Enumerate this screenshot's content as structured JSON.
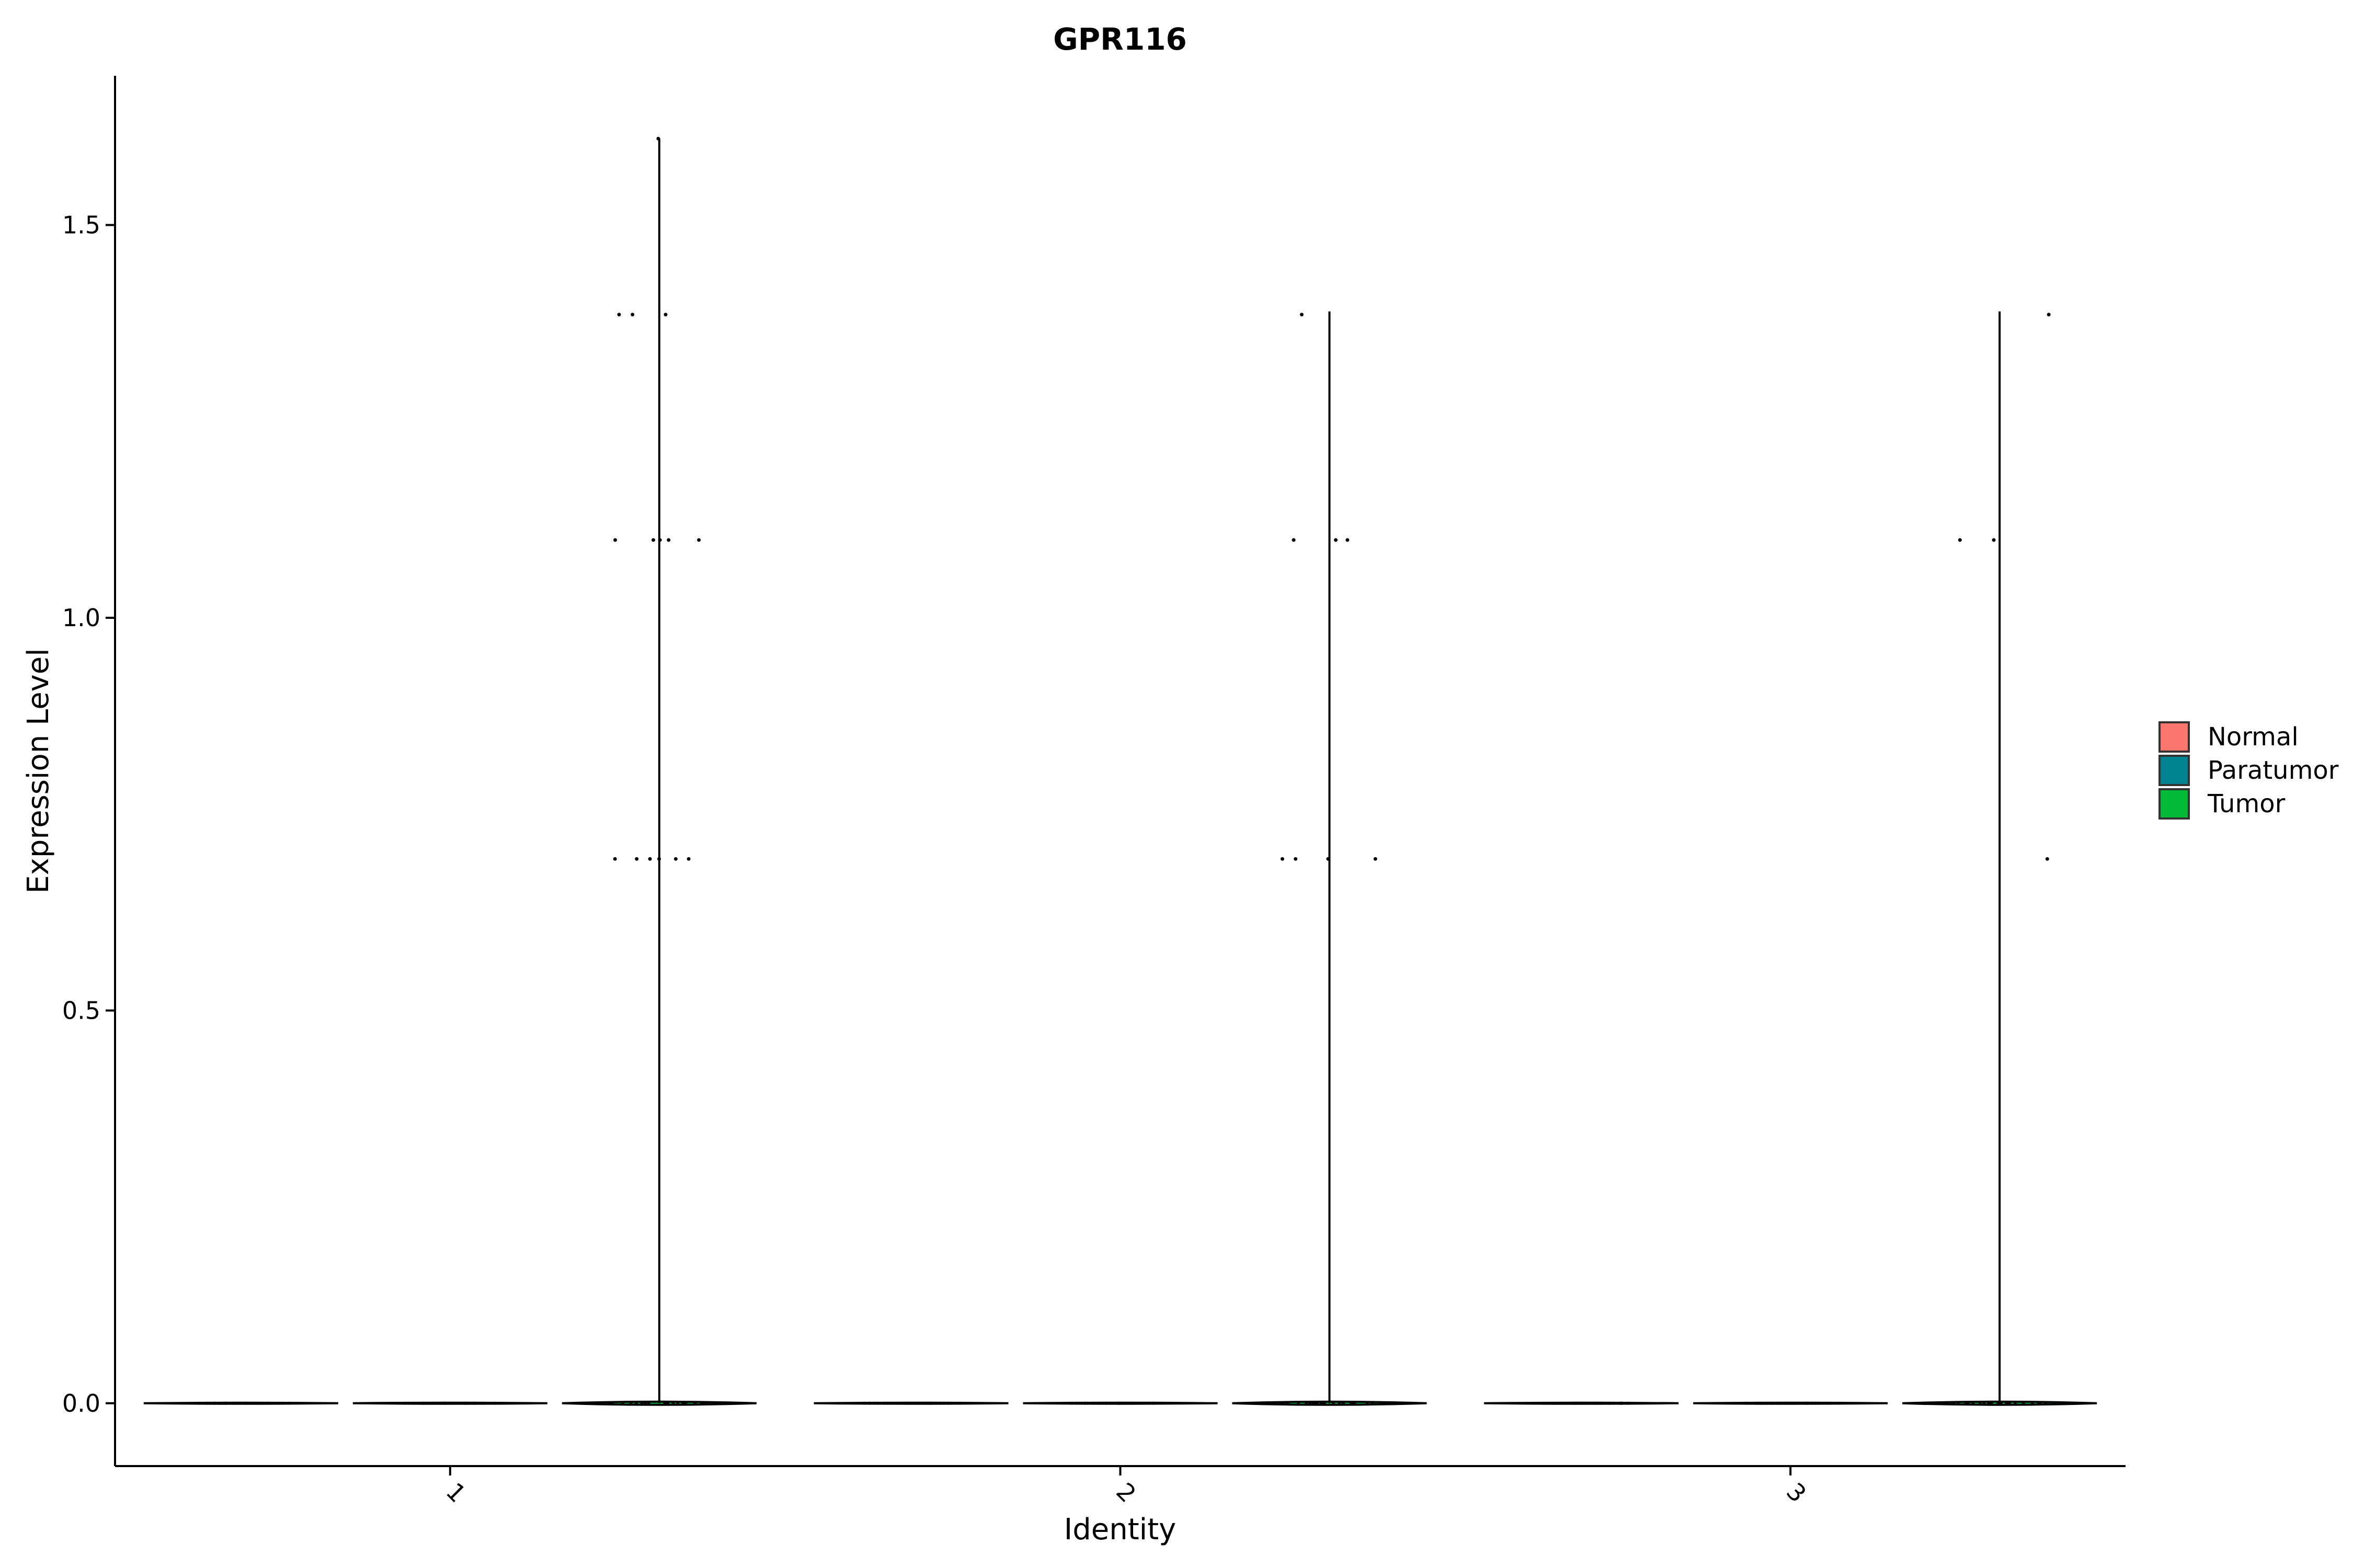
{
  "chart_data": {
    "type": "violin",
    "title": "GPR116",
    "xlabel": "Identity",
    "ylabel": "Expression Level",
    "categories": [
      "1",
      "2",
      "3"
    ],
    "ylim": [
      -0.08,
      1.69
    ],
    "yticks": [
      "0.0",
      "0.5",
      "1.0",
      "1.5"
    ],
    "grid": false,
    "legend": {
      "position": "right",
      "title": ""
    },
    "series": [
      {
        "name": "Normal",
        "color": "#F8766D"
      },
      {
        "name": "Paratumor",
        "color": "#00828F"
      },
      {
        "name": "Tumor",
        "color": "#00BA38"
      }
    ],
    "violins": [
      {
        "identity": "1",
        "group": "Normal",
        "max": 0.0
      },
      {
        "identity": "1",
        "group": "Paratumor",
        "max": 0.0
      },
      {
        "identity": "1",
        "group": "Tumor",
        "max": 1.61
      },
      {
        "identity": "2",
        "group": "Normal",
        "max": 0.0
      },
      {
        "identity": "2",
        "group": "Paratumor",
        "max": 0.0
      },
      {
        "identity": "2",
        "group": "Tumor",
        "max": 1.39
      },
      {
        "identity": "3",
        "group": "Normal",
        "max": 0.0
      },
      {
        "identity": "3",
        "group": "Paratumor",
        "max": 0.0
      },
      {
        "identity": "3",
        "group": "Tumor",
        "max": 1.39
      }
    ],
    "points": [
      {
        "identity": "1",
        "group": "Tumor",
        "y": [
          1.61,
          1.386,
          1.386,
          1.386,
          1.099,
          1.099,
          1.099,
          1.099,
          1.099,
          0.693,
          0.693,
          0.693,
          0.693,
          0.693,
          0.693
        ]
      },
      {
        "identity": "2",
        "group": "Tumor",
        "y": [
          1.386,
          1.099,
          1.099,
          1.099,
          0.693,
          0.693,
          0.693,
          0.693
        ]
      },
      {
        "identity": "3",
        "group": "Tumor",
        "y": [
          1.386,
          1.099,
          1.099,
          0.693
        ]
      }
    ]
  }
}
